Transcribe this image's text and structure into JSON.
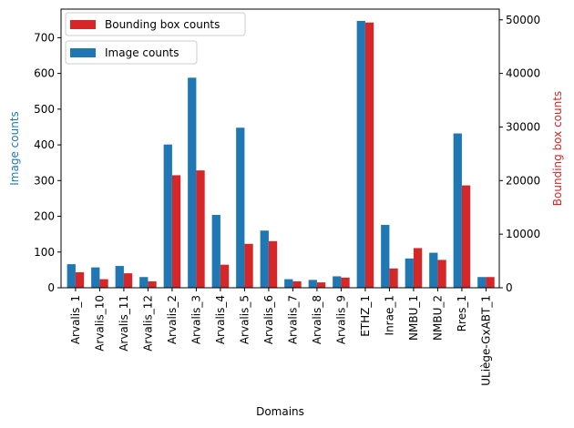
{
  "chart_data": {
    "type": "bar",
    "xlabel": "Domains",
    "ylabel_left": "Image counts",
    "ylabel_right": "Bounding box counts",
    "ylim_left": [
      0,
      780
    ],
    "ylim_right": [
      0,
      52000
    ],
    "yticks_left": [
      0,
      100,
      200,
      300,
      400,
      500,
      600,
      700
    ],
    "yticks_right": [
      0,
      10000,
      20000,
      30000,
      40000,
      50000
    ],
    "categories": [
      "Arvalis_1",
      "Arvalis_10",
      "Arvalis_11",
      "Arvalis_12",
      "Arvalis_2",
      "Arvalis_3",
      "Arvalis_4",
      "Arvalis_5",
      "Arvalis_6",
      "Arvalis_7",
      "Arvalis_8",
      "Arvalis_9",
      "ETHZ_1",
      "Inrae_1",
      "NMBU_1",
      "NMBU_2",
      "Rres_1",
      "ULiège-GxABT_1"
    ],
    "series": [
      {
        "name": "Image counts",
        "axis": "left",
        "color": "#1f77b4",
        "values": [
          66,
          57,
          61,
          30,
          401,
          588,
          204,
          448,
          160,
          24,
          22,
          32,
          747,
          176,
          82,
          98,
          432,
          30
        ]
      },
      {
        "name": "Bounding box counts",
        "axis": "right",
        "color": "#d62728",
        "values": [
          2900,
          1600,
          2700,
          1200,
          21000,
          21900,
          4300,
          8200,
          8700,
          1200,
          1000,
          1900,
          49500,
          3600,
          7400,
          5200,
          19100,
          2000
        ]
      }
    ],
    "legend_placement": [
      "upper-left",
      "upper-left"
    ],
    "grid": false
  }
}
